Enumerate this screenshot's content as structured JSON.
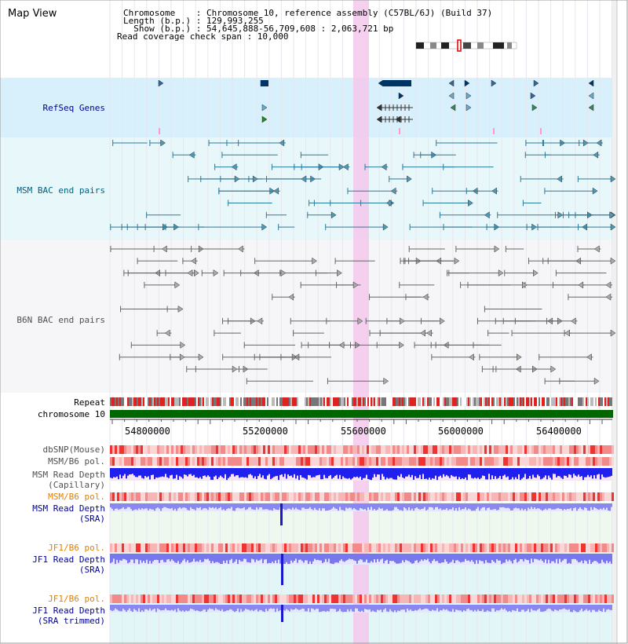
{
  "panel_title": "Map View",
  "header": {
    "chromosome_line": "Chromosome    : Chromosome 10, reference assembly (C57BL/6J) (Build 37)",
    "length_line": "Length (b.p.) : 129,993,255",
    "show_line": "  Show (b.p.) : 54,645,888-56,709,608 : 2,063,721 bp",
    "coverage_line": "Read coverage check span : 10,000"
  },
  "tracks": {
    "refseq": "RefSeq Genes",
    "msm_bac": "MSM BAC end pairs",
    "b6n_bac": "B6N BAC end pairs",
    "repeat": "Repeat",
    "chromosome": "chromosome 10",
    "dbsnp": "dbSNP(Mouse)",
    "msm_b6_pol_1": "MSM/B6 pol.",
    "msm_depth_cap_1": "MSM Read Depth",
    "msm_depth_cap_2": "(Capillary)",
    "msm_b6_pol_2": "MSM/B6 pol.",
    "msm_depth_sra_1": "MSM Read Depth",
    "msm_depth_sra_2": "(SRA)",
    "jf1_b6_pol_1": "JF1/B6 pol.",
    "jf1_depth_sra_1": "JF1 Read Depth",
    "jf1_depth_sra_2": "(SRA)",
    "jf1_b6_pol_2": "JF1/B6 pol.",
    "jf1_depth_trim_1": "JF1 Read Depth",
    "jf1_depth_trim_2": "(SRA trimmed)"
  },
  "axis": {
    "ticks": [
      "54800000",
      "55200000",
      "55600000",
      "56000000",
      "56400000"
    ]
  },
  "colors": {
    "refseq_label": "#000099",
    "msm_bac_label": "#006080",
    "b6n_bac_label": "#505050",
    "orange_label": "#e08000",
    "blue_label": "#000099",
    "highlight": "#f4c8ec",
    "chromosome_bar": "#006600"
  }
}
